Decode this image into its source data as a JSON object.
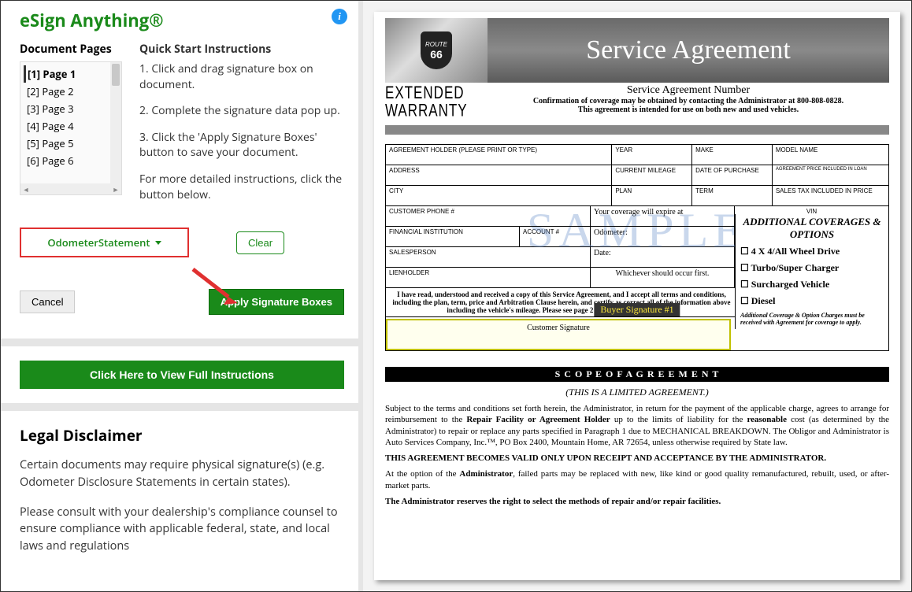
{
  "left": {
    "app_title": "eSign Anything®",
    "pages_heading": "Document Pages",
    "instructions_heading": "Quick Start Instructions",
    "pages": [
      {
        "label": "[1] Page 1",
        "active": true
      },
      {
        "label": "[2] Page 2",
        "active": false
      },
      {
        "label": "[3] Page 3",
        "active": false
      },
      {
        "label": "[4] Page 4",
        "active": false
      },
      {
        "label": "[5] Page 5",
        "active": false
      },
      {
        "label": "[6] Page 6",
        "active": false
      }
    ],
    "instructions": [
      "1. Click and drag signature box on document.",
      "2. Complete the signature data pop up.",
      "3. Click the 'Apply Signature Boxes' button to save your document.",
      "For more detailed instructions, click the button below."
    ],
    "dropdown_label": "OdometerStatement",
    "clear_label": "Clear",
    "cancel_label": "Cancel",
    "apply_label": "Apply Signature Boxes",
    "full_instructions_label": "Click Here to View Full Instructions",
    "legal_heading": "Legal Disclaimer",
    "legal_p1": "Certain documents may require physical signature(s) (e.g. Odometer Disclosure Statements in certain states).",
    "legal_p2": "Please consult with your dealership's compliance counsel to ensure compliance with applicable federal, state, and local laws and regulations",
    "highlight_color": "#e03030",
    "arrow_color": "#e03030",
    "primary_color": "#1a8a1a"
  },
  "doc": {
    "brand_top": "ROUTE",
    "brand_num": "66",
    "title": "Service Agreement",
    "ext_line1": "EXTENDED",
    "ext_line2": "WARRANTY",
    "sub_number": "Service Agreement Number",
    "conf1": "Confirmation of coverage may be obtained by contacting the Administrator at 800-808-0828.",
    "conf2": "This agreement is intended for use on both new and used vehicles.",
    "watermark": "SAMPLE",
    "form": {
      "r1c1": "AGREEMENT HOLDER (PLEASE PRINT OR TYPE)",
      "r1c2": "YEAR",
      "r1c3": "MAKE",
      "r1c4": "MODEL NAME",
      "r2c1": "ADDRESS",
      "r2c2": "CURRENT MILEAGE",
      "r2c3": "DATE OF PURCHASE",
      "r2c4": "AGREEMENT PRICE INCLUDED IN LOAN",
      "r3c1": "CITY",
      "r3c2": "PLAN",
      "r3c3": "TERM",
      "r3c4": "SALES TAX INCLUDED IN PRICE",
      "r4c1": "CUSTOMER PHONE #",
      "r4c2": "Your coverage will expire at",
      "r4c3": "VIN",
      "r5c1": "FINANCIAL INSTITUTION",
      "r5c2": "ACCOUNT #",
      "r5c3": "Odometer:",
      "r6c1": "SALESPERSON",
      "r6c2": "Date:",
      "r7c1": "LIENHOLDER",
      "r7c2": "Whichever should occur first."
    },
    "options": {
      "heading": "ADDITIONAL COVERAGES & OPTIONS",
      "items": [
        "4 X 4/All Wheel Drive",
        "Turbo/Super Charger",
        "Surcharged Vehicle",
        "Diesel"
      ],
      "fineprint": "Additional Coverage & Option Charges must be received with Agreement for coverage to apply."
    },
    "ack": "I have read, understood and received a copy of this Service Agreement, and I accept all terms and conditions, including the plan, term, price and Arbitration Clause herein, and certify as correct all of the information above including the vehicle's mileage.  Please see page 2 for important information.",
    "sig_marker": "Buyer Signature #1",
    "sig_caption": "Customer Signature",
    "scope": "S C O P E O F A G R E E M E N T",
    "limited": "(THIS IS A LIMITED AGREEMENT.)",
    "p1_a": "Subject to the terms and conditions set forth herein, the Administrator, in return for the payment of the applicable charge, agrees to arrange for reimbursement to the ",
    "p1_b": "Repair Facility or Agreement Holder",
    "p1_c": " up to the limits of liability for the ",
    "p1_d": "reasonable",
    "p1_e": " cost (as determined by the Administrator) to repair or replace any parts specified in Paragraph 1 due to MECHANICAL BREAKDOWN. The Obligor and Administrator is Auto Services Company, Inc.™, PO Box 2400, Mountain Home, AR  72654, unless otherwise required by State law.",
    "p2": "THIS AGREEMENT BECOMES VALID ONLY UPON RECEIPT AND ACCEPTANCE BY THE ADMINISTRATOR.",
    "p3_a": "At the option of the ",
    "p3_b": "Administrator",
    "p3_c": ", failed parts may be replaced with new, like kind or good quality remanufactured, rebuilt, used, or after-market parts.",
    "p4": "The Administrator reserves the right to select the methods of repair and/or repair facilities."
  }
}
